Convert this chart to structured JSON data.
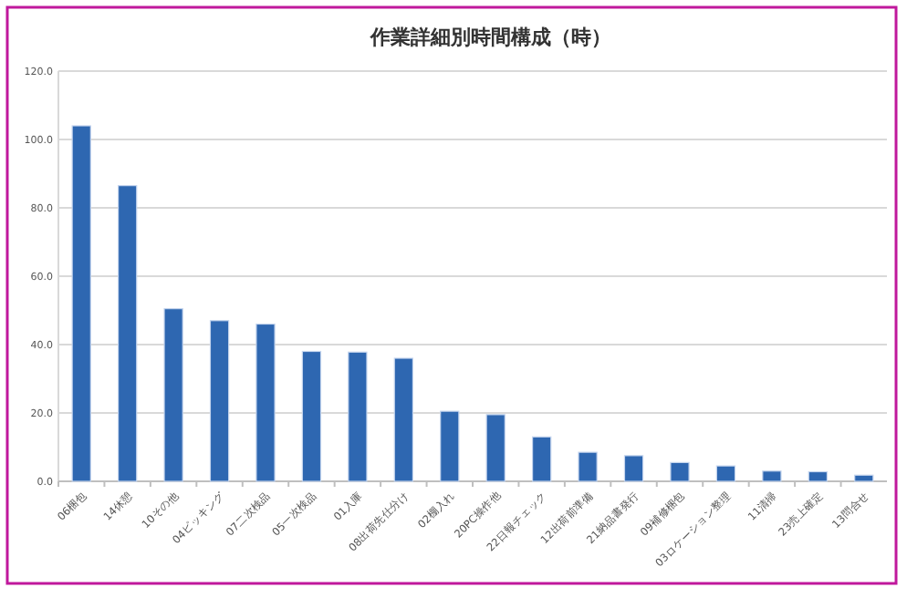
{
  "chart_data": {
    "type": "bar",
    "title": "作業詳細別時間構成（時）",
    "categories": [
      "06梱包",
      "14休憩",
      "10その他",
      "04ピッキング",
      "07二次検品",
      "05一次検品",
      "01入庫",
      "08出荷先仕分け",
      "02棚入れ",
      "20PC操作他",
      "22日報チェック",
      "12出荷前準備",
      "21納品書発行",
      "09補修梱包",
      "03ロケーション整理",
      "11清掃",
      "23売上確定",
      "13問合せ"
    ],
    "values": [
      104,
      86.5,
      50.5,
      47,
      46,
      38,
      37.8,
      36,
      20.5,
      19.5,
      13,
      8.5,
      7.5,
      5.5,
      4.5,
      3,
      2.8,
      1.8
    ],
    "color": "#2e67b1",
    "ylim": [
      0,
      120
    ],
    "yticks": [
      {
        "value": 0,
        "label": "0.0"
      },
      {
        "value": 20,
        "label": "20.0"
      },
      {
        "value": 40,
        "label": "40.0"
      },
      {
        "value": 60,
        "label": "60.0"
      },
      {
        "value": 80,
        "label": "80.0"
      },
      {
        "value": 100,
        "label": "100.0"
      },
      {
        "value": 120,
        "label": "120.0"
      }
    ],
    "grid": "y"
  }
}
